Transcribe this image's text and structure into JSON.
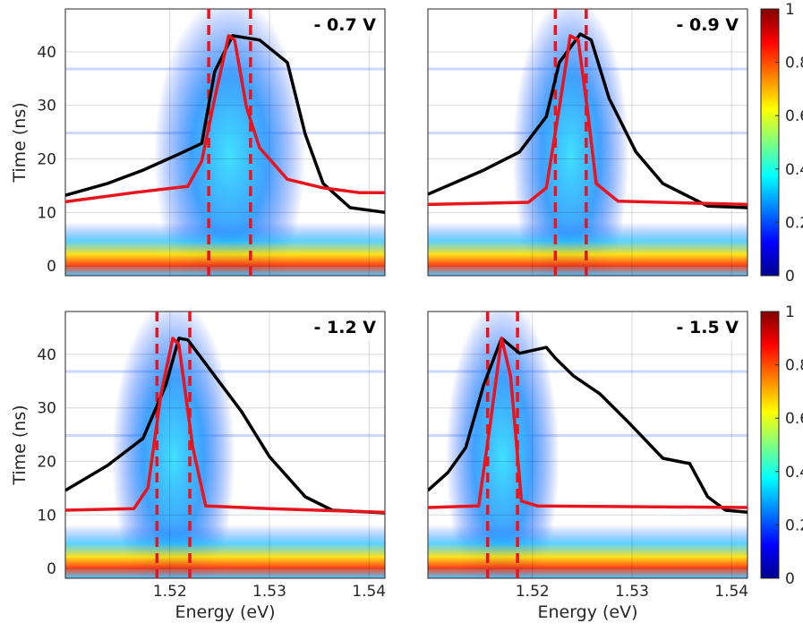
{
  "chart_data": [
    {
      "type": "streak",
      "title": "- 0.7 V",
      "ylabel": "Time (ns)",
      "xlim": [
        1.5095,
        1.5416
      ],
      "ylim": [
        -1.8,
        48
      ],
      "xticks": [
        1.52,
        1.53,
        1.54
      ],
      "yticks": [
        0,
        10,
        20,
        30,
        40
      ],
      "grid": true,
      "dashed_x": [
        1.5239,
        1.5281
      ],
      "dashed_color": "#e8141e",
      "series": [
        {
          "color": "#000000",
          "x": [
            1.5095,
            1.5137,
            1.5173,
            1.5209,
            1.5232,
            1.5245,
            1.5263,
            1.529,
            1.5318,
            1.5336,
            1.5354,
            1.5381,
            1.5417
          ],
          "values": [
            13.2,
            15.4,
            17.9,
            20.9,
            22.9,
            36.3,
            43.0,
            42.2,
            38.0,
            24.6,
            15.4,
            10.9,
            10.0
          ]
        },
        {
          "color": "#e8141e",
          "x": [
            1.5095,
            1.5164,
            1.5218,
            1.5232,
            1.5245,
            1.5259,
            1.5265,
            1.5277,
            1.529,
            1.5318,
            1.5354,
            1.539,
            1.5417
          ],
          "values": [
            12.0,
            13.7,
            14.9,
            19.6,
            31.3,
            43.0,
            42.2,
            29.6,
            22.1,
            16.2,
            14.6,
            13.7,
            13.7
          ]
        }
      ]
    },
    {
      "type": "streak",
      "title": "- 0.9 V",
      "xlim": [
        1.5095,
        1.5416
      ],
      "ylim": [
        -1.8,
        48
      ],
      "xticks": [
        1.52,
        1.53,
        1.54
      ],
      "yticks": [
        0,
        10,
        20,
        30,
        40
      ],
      "grid": true,
      "dashed_x": [
        1.5223,
        1.5254
      ],
      "dashed_color": "#e8141e",
      "colorbar": {
        "lim": [
          0,
          1
        ],
        "ticks": [
          0,
          0.2,
          0.4,
          0.6,
          0.8,
          1
        ]
      },
      "series": [
        {
          "color": "#000000",
          "x": [
            1.5095,
            1.5151,
            1.5187,
            1.5214,
            1.5227,
            1.5248,
            1.5259,
            1.5277,
            1.5304,
            1.5331,
            1.5376,
            1.5417
          ],
          "values": [
            13.4,
            17.9,
            21.3,
            27.9,
            38.0,
            43.3,
            42.2,
            31.3,
            21.3,
            15.4,
            11.2,
            10.9
          ]
        },
        {
          "color": "#e8141e",
          "x": [
            1.5095,
            1.5196,
            1.5214,
            1.5227,
            1.5238,
            1.5246,
            1.5255,
            1.5264,
            1.5286,
            1.5417
          ],
          "values": [
            11.5,
            11.9,
            14.6,
            29.6,
            43.0,
            42.2,
            29.6,
            15.4,
            12.1,
            11.5
          ]
        }
      ]
    },
    {
      "type": "streak",
      "title": "- 1.2 V",
      "ylabel": "Time (ns)",
      "xlabel": "Energy (eV)",
      "xlim": [
        1.5095,
        1.5416
      ],
      "ylim": [
        -1.8,
        48
      ],
      "xticks": [
        1.52,
        1.53,
        1.54
      ],
      "yticks": [
        0,
        10,
        20,
        30,
        40
      ],
      "grid": true,
      "dashed_x": [
        1.5187,
        1.522
      ],
      "dashed_color": "#e8141e",
      "series": [
        {
          "color": "#000000",
          "x": [
            1.5095,
            1.5137,
            1.5173,
            1.5196,
            1.5209,
            1.5218,
            1.5245,
            1.5272,
            1.53,
            1.5336,
            1.5363,
            1.5417
          ],
          "values": [
            14.6,
            19.2,
            24.3,
            34.3,
            43.0,
            42.7,
            36.0,
            29.3,
            20.9,
            13.4,
            10.9,
            10.4
          ]
        },
        {
          "color": "#e8141e",
          "x": [
            1.5095,
            1.5164,
            1.5178,
            1.5191,
            1.5203,
            1.5209,
            1.5223,
            1.5236,
            1.53,
            1.5417
          ],
          "values": [
            10.9,
            11.2,
            15.1,
            32.6,
            43.0,
            41.8,
            22.6,
            11.7,
            11.2,
            10.5
          ]
        }
      ]
    },
    {
      "type": "streak",
      "title": "- 1.5 V",
      "xlabel": "Energy (eV)",
      "xlim": [
        1.5095,
        1.5416
      ],
      "ylim": [
        -1.8,
        48
      ],
      "xticks": [
        1.52,
        1.53,
        1.54
      ],
      "yticks": [
        0,
        10,
        20,
        30,
        40
      ],
      "grid": true,
      "dashed_x": [
        1.5155,
        1.5185
      ],
      "dashed_color": "#e8141e",
      "colorbar": {
        "lim": [
          0,
          1
        ],
        "ticks": [
          0,
          0.2,
          0.4,
          0.6,
          0.8,
          1
        ]
      },
      "series": [
        {
          "color": "#000000",
          "x": [
            1.5095,
            1.5115,
            1.5133,
            1.5151,
            1.5169,
            1.5187,
            1.5214,
            1.5223,
            1.5241,
            1.5268,
            1.5295,
            1.5331,
            1.5358,
            1.5376,
            1.5394,
            1.5417
          ],
          "values": [
            14.6,
            17.9,
            22.6,
            34.3,
            43.0,
            40.2,
            41.3,
            39.3,
            36.0,
            32.6,
            27.6,
            20.6,
            19.6,
            13.4,
            10.9,
            10.5
          ]
        },
        {
          "color": "#e8141e",
          "x": [
            1.5095,
            1.5146,
            1.5158,
            1.5169,
            1.5178,
            1.5189,
            1.5205,
            1.5417
          ],
          "values": [
            11.4,
            11.7,
            27.6,
            43.0,
            36.0,
            12.6,
            11.7,
            11.4
          ]
        }
      ]
    }
  ]
}
